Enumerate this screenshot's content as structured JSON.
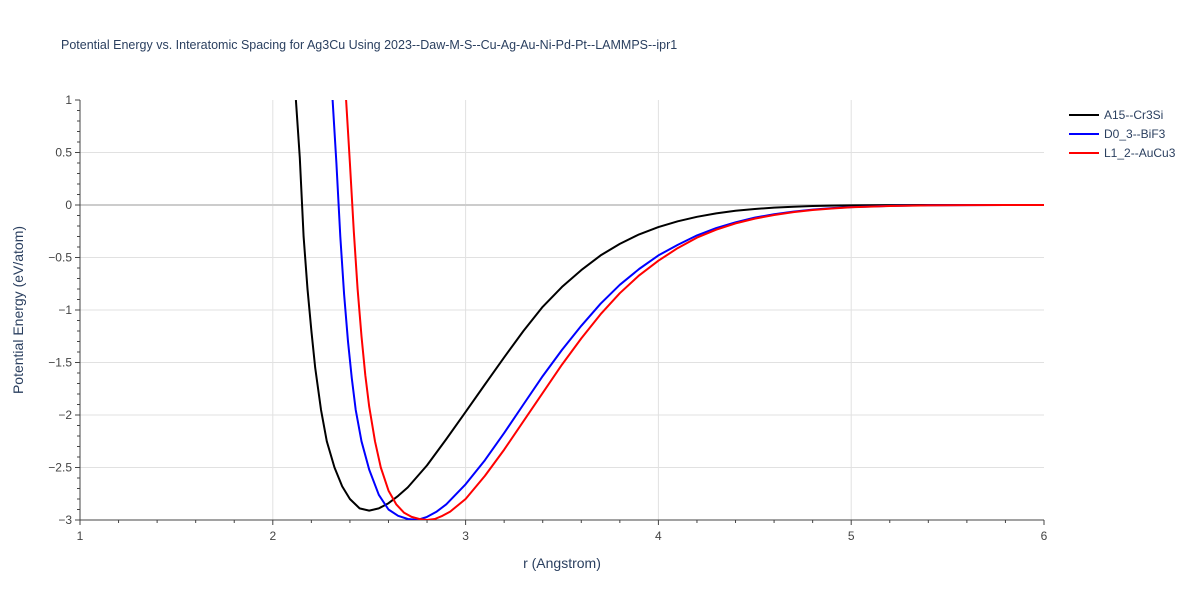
{
  "chart_data": {
    "type": "line",
    "title": "Potential Energy vs. Interatomic Spacing for Ag3Cu Using 2023--Daw-M-S--Cu-Ag-Au-Ni-Pd-Pt--LAMMPS--ipr1",
    "xlabel": "r (Angstrom)",
    "ylabel": "Potential Energy (eV/atom)",
    "xlim": [
      1,
      6
    ],
    "ylim": [
      -3,
      1
    ],
    "x_ticks": [
      "1",
      "2",
      "3",
      "4",
      "5",
      "6"
    ],
    "y_ticks": [
      "1",
      "0.5",
      "0",
      "−0.5",
      "−1",
      "−1.5",
      "−2",
      "−2.5",
      "−3"
    ],
    "grid": true,
    "legend_position": "top-right",
    "series": [
      {
        "name": "A15--Cr3Si",
        "color": "#000000",
        "x": [
          2.12,
          2.14,
          2.16,
          2.18,
          2.2,
          2.22,
          2.25,
          2.28,
          2.32,
          2.36,
          2.4,
          2.45,
          2.5,
          2.55,
          2.6,
          2.65,
          2.7,
          2.8,
          2.9,
          3.0,
          3.1,
          3.2,
          3.3,
          3.4,
          3.5,
          3.6,
          3.7,
          3.8,
          3.9,
          4.0,
          4.1,
          4.2,
          4.3,
          4.4,
          4.5,
          4.6,
          4.7,
          4.8,
          4.9,
          5.0,
          5.2,
          5.4,
          5.6,
          5.8,
          6.0
        ],
        "y": [
          1.0,
          0.45,
          -0.3,
          -0.8,
          -1.2,
          -1.55,
          -1.95,
          -2.25,
          -2.5,
          -2.68,
          -2.8,
          -2.89,
          -2.91,
          -2.89,
          -2.84,
          -2.77,
          -2.69,
          -2.48,
          -2.23,
          -1.97,
          -1.71,
          -1.45,
          -1.2,
          -0.97,
          -0.78,
          -0.62,
          -0.48,
          -0.37,
          -0.28,
          -0.21,
          -0.155,
          -0.112,
          -0.08,
          -0.055,
          -0.038,
          -0.025,
          -0.016,
          -0.01,
          -0.006,
          -0.004,
          -0.001,
          0.0,
          0.0,
          0.0,
          0.0
        ],
        "line_width": 2
      },
      {
        "name": "D0_3--BiF3",
        "color": "#0000ff",
        "x": [
          2.31,
          2.33,
          2.35,
          2.37,
          2.39,
          2.41,
          2.43,
          2.46,
          2.5,
          2.55,
          2.6,
          2.65,
          2.7,
          2.75,
          2.8,
          2.85,
          2.9,
          3.0,
          3.1,
          3.2,
          3.3,
          3.4,
          3.5,
          3.6,
          3.7,
          3.8,
          3.9,
          4.0,
          4.1,
          4.2,
          4.3,
          4.4,
          4.5,
          4.6,
          4.7,
          4.8,
          4.9,
          5.0,
          5.2,
          5.4,
          5.6,
          5.8,
          6.0
        ],
        "y": [
          1.0,
          0.4,
          -0.3,
          -0.85,
          -1.3,
          -1.65,
          -1.95,
          -2.25,
          -2.52,
          -2.76,
          -2.9,
          -2.96,
          -2.99,
          -3.0,
          -2.97,
          -2.92,
          -2.85,
          -2.66,
          -2.43,
          -2.17,
          -1.9,
          -1.63,
          -1.38,
          -1.15,
          -0.94,
          -0.76,
          -0.61,
          -0.48,
          -0.38,
          -0.29,
          -0.22,
          -0.165,
          -0.12,
          -0.088,
          -0.063,
          -0.044,
          -0.03,
          -0.02,
          -0.009,
          -0.003,
          -0.001,
          0.0,
          0.0
        ],
        "line_width": 2
      },
      {
        "name": "L1_2--AuCu3",
        "color": "#ff0000",
        "x": [
          2.38,
          2.4,
          2.42,
          2.44,
          2.46,
          2.48,
          2.5,
          2.53,
          2.56,
          2.6,
          2.64,
          2.68,
          2.72,
          2.76,
          2.8,
          2.84,
          2.88,
          2.92,
          3.0,
          3.1,
          3.2,
          3.3,
          3.4,
          3.5,
          3.6,
          3.7,
          3.8,
          3.9,
          4.0,
          4.1,
          4.2,
          4.3,
          4.4,
          4.5,
          4.6,
          4.7,
          4.8,
          4.9,
          5.0,
          5.2,
          5.4,
          5.6,
          5.8,
          6.0
        ],
        "y": [
          1.0,
          0.4,
          -0.25,
          -0.8,
          -1.25,
          -1.62,
          -1.92,
          -2.25,
          -2.5,
          -2.72,
          -2.85,
          -2.93,
          -2.97,
          -2.99,
          -3.0,
          -2.99,
          -2.96,
          -2.92,
          -2.8,
          -2.58,
          -2.33,
          -2.06,
          -1.79,
          -1.52,
          -1.27,
          -1.04,
          -0.84,
          -0.67,
          -0.53,
          -0.41,
          -0.31,
          -0.235,
          -0.175,
          -0.13,
          -0.095,
          -0.068,
          -0.048,
          -0.033,
          -0.022,
          -0.01,
          -0.004,
          -0.001,
          0.0,
          0.0
        ],
        "line_width": 2
      }
    ]
  }
}
